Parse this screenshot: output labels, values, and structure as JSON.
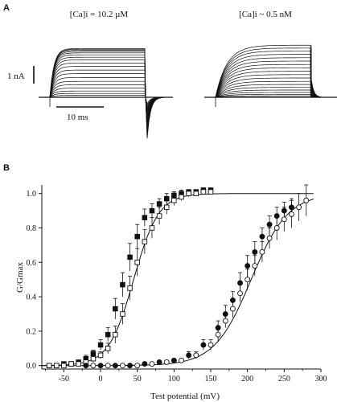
{
  "panel_a": {
    "letter": "A",
    "left_condition": "[Ca]i = 10.2 µM",
    "right_condition": "[Ca]i ~ 0.5 nM",
    "scale_current": "1 nA",
    "scale_time": "10 ms",
    "left_steady_levels_nA": [
      0.08,
      0.16,
      0.26,
      0.38,
      0.52,
      0.66,
      0.82,
      0.98,
      1.13,
      1.28,
      1.42,
      1.55,
      1.66,
      1.76,
      1.84,
      1.9,
      1.95,
      1.99,
      2.02
    ],
    "right_steady_levels_nA": [
      0.06,
      0.12,
      0.2,
      0.3,
      0.41,
      0.53,
      0.66,
      0.8,
      0.94,
      1.08,
      1.22,
      1.36,
      1.5,
      1.64,
      1.78,
      1.92,
      2.04,
      2.16
    ]
  },
  "panel_b": {
    "letter": "B"
  },
  "chart_data": {
    "type": "scatter",
    "xlabel": "Test potential (mV)",
    "ylabel": "G/Gmax",
    "xlim": [
      -80,
      300
    ],
    "ylim": [
      -0.02,
      1.05
    ],
    "xticks": [
      "-50",
      "0",
      "50",
      "100",
      "150",
      "200",
      "250",
      "300"
    ],
    "yticks": [
      "0.0",
      "0.2",
      "0.4",
      "0.6",
      "0.8",
      "1.0"
    ],
    "grid": false,
    "series": [
      {
        "marker": "filled-square",
        "x": [
          -70,
          -60,
          -50,
          -40,
          -30,
          -20,
          -10,
          0,
          10,
          20,
          30,
          40,
          50,
          60,
          70,
          80,
          90,
          100,
          110,
          120,
          130,
          140,
          150
        ],
        "y": [
          0.0,
          0.0,
          0.01,
          0.01,
          0.02,
          0.04,
          0.07,
          0.12,
          0.18,
          0.33,
          0.47,
          0.63,
          0.75,
          0.86,
          0.9,
          0.94,
          0.97,
          0.99,
          1.0,
          1.01,
          1.01,
          1.02,
          1.02
        ],
        "err": [
          0.0,
          0.0,
          0.01,
          0.01,
          0.01,
          0.02,
          0.02,
          0.03,
          0.04,
          0.06,
          0.07,
          0.08,
          0.07,
          0.05,
          0.04,
          0.03,
          0.03,
          0.02,
          0.02,
          0.01,
          0.01,
          0.01,
          0.01
        ]
      },
      {
        "marker": "open-square",
        "x": [
          -70,
          -60,
          -50,
          -40,
          -30,
          -20,
          -10,
          0,
          10,
          20,
          30,
          40,
          50,
          60,
          70,
          80,
          90,
          100,
          110,
          120,
          130,
          140,
          150
        ],
        "y": [
          0.0,
          0.0,
          0.0,
          0.01,
          0.01,
          0.02,
          0.04,
          0.06,
          0.1,
          0.18,
          0.3,
          0.45,
          0.6,
          0.72,
          0.8,
          0.87,
          0.92,
          0.96,
          0.98,
          1.0,
          1.0,
          1.01,
          1.01
        ],
        "err": [
          0.0,
          0.0,
          0.0,
          0.01,
          0.01,
          0.01,
          0.02,
          0.02,
          0.03,
          0.05,
          0.06,
          0.07,
          0.08,
          0.07,
          0.06,
          0.05,
          0.04,
          0.03,
          0.02,
          0.02,
          0.01,
          0.01,
          0.01
        ]
      },
      {
        "marker": "filled-circle",
        "x": [
          -20,
          0,
          20,
          40,
          60,
          80,
          100,
          120,
          140,
          160,
          170,
          180,
          190,
          200,
          210,
          220,
          230,
          240,
          250,
          260
        ],
        "y": [
          0.0,
          0.0,
          0.0,
          0.0,
          0.01,
          0.02,
          0.03,
          0.06,
          0.12,
          0.22,
          0.3,
          0.38,
          0.48,
          0.58,
          0.66,
          0.75,
          0.82,
          0.87,
          0.9,
          0.92
        ],
        "err": [
          0.0,
          0.0,
          0.0,
          0.0,
          0.01,
          0.01,
          0.01,
          0.02,
          0.03,
          0.04,
          0.05,
          0.05,
          0.06,
          0.06,
          0.06,
          0.05,
          0.05,
          0.05,
          0.05,
          0.05
        ]
      },
      {
        "marker": "open-circle",
        "x": [
          -10,
          10,
          30,
          50,
          70,
          90,
          110,
          130,
          150,
          160,
          170,
          180,
          190,
          200,
          210,
          220,
          230,
          240,
          250,
          260,
          270,
          280
        ],
        "y": [
          0.0,
          0.0,
          0.0,
          0.0,
          0.01,
          0.02,
          0.03,
          0.06,
          0.12,
          0.18,
          0.26,
          0.33,
          0.42,
          0.5,
          0.58,
          0.66,
          0.74,
          0.8,
          0.85,
          0.88,
          0.92,
          0.96
        ],
        "err": [
          0.0,
          0.0,
          0.0,
          0.0,
          0.01,
          0.01,
          0.01,
          0.02,
          0.03,
          0.04,
          0.04,
          0.05,
          0.05,
          0.06,
          0.06,
          0.06,
          0.06,
          0.07,
          0.07,
          0.08,
          0.08,
          0.09
        ]
      }
    ],
    "fits": [
      {
        "v_half": 45,
        "slope": 17
      },
      {
        "v_half": 205,
        "slope": 25
      }
    ]
  }
}
